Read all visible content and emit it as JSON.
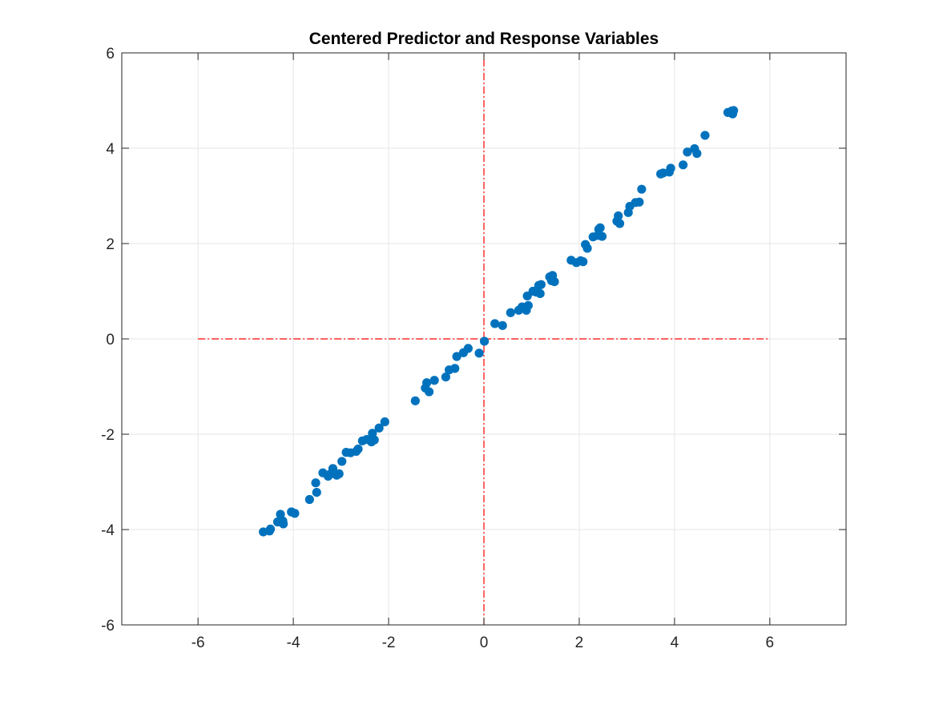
{
  "chart_data": {
    "type": "scatter",
    "title": "Centered Predictor and Response Variables",
    "xlabel": "",
    "ylabel": "",
    "xlim": [
      -7.6,
      7.6
    ],
    "ylim": [
      -6,
      6
    ],
    "xticks": [
      -6,
      -4,
      -2,
      0,
      2,
      4,
      6
    ],
    "yticks": [
      -6,
      -4,
      -2,
      0,
      2,
      4,
      6
    ],
    "grid": true,
    "legend": "none",
    "marker_color": "#0072BD",
    "reference_line_color": "#FF0000",
    "reference_lines": [
      {
        "orientation": "horizontal",
        "at": 0,
        "from": -6,
        "to": 6,
        "style": "dash-dot"
      },
      {
        "orientation": "vertical",
        "at": 0,
        "from": -6,
        "to": 6,
        "style": "dash-dot"
      }
    ],
    "series": [
      {
        "x": [
          -4.63,
          -4.5,
          -4.48,
          -4.33,
          -4.27,
          -4.22,
          -4.21,
          -4.04,
          -3.97,
          -3.66,
          -3.53,
          -3.51,
          -3.38,
          -3.27,
          -3.23,
          -3.17,
          -3.09,
          -3.04,
          -2.98,
          -2.89,
          -2.8,
          -2.68,
          -2.64,
          -2.55,
          -2.46,
          -2.36,
          -2.34,
          -2.3,
          -2.2,
          -2.08,
          -1.44,
          -1.23,
          -1.2,
          -1.15,
          -1.04,
          -0.8,
          -0.73,
          -0.61,
          -0.57,
          -0.43,
          -0.33,
          -0.1,
          0.01,
          0.23,
          0.39,
          0.56,
          0.73,
          0.8,
          0.89,
          0.91,
          0.93,
          1.03,
          1.1,
          1.15,
          1.18,
          1.2,
          1.38,
          1.42,
          1.44,
          1.48,
          1.83,
          1.94,
          2.03,
          2.08,
          2.13,
          2.17,
          2.29,
          2.39,
          2.41,
          2.44,
          2.48,
          2.79,
          2.82,
          2.85,
          3.03,
          3.06,
          3.18,
          3.26,
          3.31,
          3.71,
          3.76,
          3.89,
          3.92,
          4.18,
          4.27,
          4.42,
          4.47,
          4.64,
          5.12,
          5.2,
          5.22,
          5.24
        ],
        "y": [
          -4.05,
          -4.03,
          -3.99,
          -3.84,
          -3.68,
          -3.82,
          -3.88,
          -3.63,
          -3.66,
          -3.37,
          -3.02,
          -3.22,
          -2.81,
          -2.88,
          -2.84,
          -2.72,
          -2.86,
          -2.83,
          -2.57,
          -2.38,
          -2.39,
          -2.36,
          -2.31,
          -2.14,
          -2.11,
          -2.16,
          -1.98,
          -2.12,
          -1.87,
          -1.74,
          -1.3,
          -1.03,
          -0.92,
          -1.11,
          -0.87,
          -0.8,
          -0.65,
          -0.62,
          -0.37,
          -0.29,
          -0.2,
          -0.3,
          -0.05,
          0.32,
          0.28,
          0.55,
          0.6,
          0.67,
          0.6,
          0.9,
          0.7,
          1.0,
          0.98,
          1.12,
          0.95,
          1.14,
          1.3,
          1.22,
          1.33,
          1.2,
          1.65,
          1.6,
          1.64,
          1.62,
          1.98,
          1.9,
          2.14,
          2.17,
          2.3,
          2.33,
          2.15,
          2.47,
          2.58,
          2.42,
          2.65,
          2.78,
          2.86,
          2.87,
          3.14,
          3.46,
          3.48,
          3.5,
          3.58,
          3.65,
          3.92,
          3.99,
          3.89,
          4.27,
          4.75,
          4.78,
          4.72,
          4.79
        ]
      }
    ]
  }
}
